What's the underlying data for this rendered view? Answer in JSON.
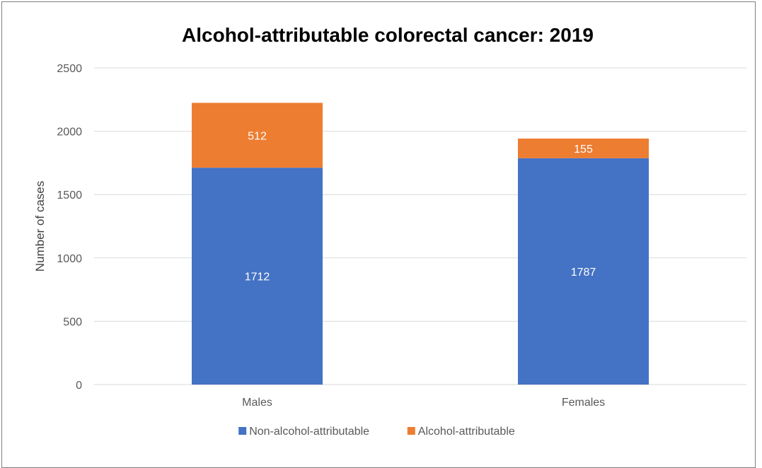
{
  "chart_data": {
    "type": "bar",
    "stacked": true,
    "title": "Alcohol-attributable colorectal cancer: 2019",
    "xlabel": "",
    "ylabel": "Number of cases",
    "categories": [
      "Males",
      "Females"
    ],
    "series": [
      {
        "name": "Non-alcohol-attributable",
        "values": [
          1712,
          1787
        ],
        "color": "#4472C4"
      },
      {
        "name": "Alcohol-attributable",
        "values": [
          512,
          155
        ],
        "color": "#ED7D31"
      }
    ],
    "ylim": [
      0,
      2500
    ],
    "yticks": [
      0,
      500,
      1000,
      1500,
      2000,
      2500
    ],
    "grid": true,
    "legend_position": "bottom",
    "data_labels": true
  }
}
